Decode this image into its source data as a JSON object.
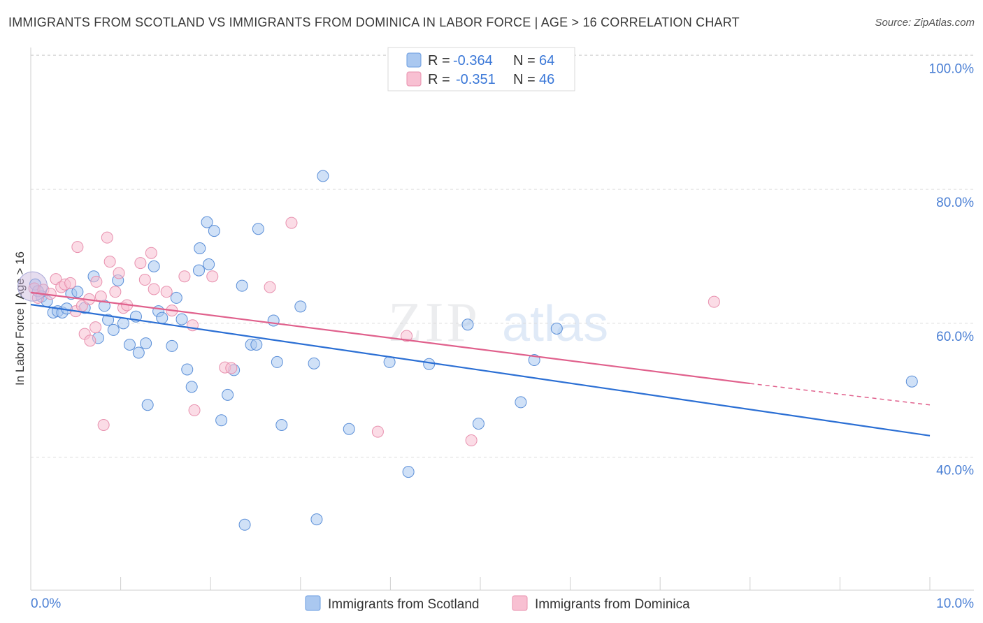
{
  "title": "IMMIGRANTS FROM SCOTLAND VS IMMIGRANTS FROM DOMINICA IN LABOR FORCE | AGE > 16 CORRELATION CHART",
  "source": "Source: ZipAtlas.com",
  "watermark": {
    "zip": "ZIP",
    "atlas": "atlas"
  },
  "chart_data": {
    "type": "scatter",
    "ylabel": "In Labor Force | Age > 16",
    "xlim": [
      0,
      10
    ],
    "ylim": [
      22,
      102
    ],
    "x_tick_labels": [
      "0.0%",
      "10.0%"
    ],
    "y_ticks": [
      40,
      60,
      80,
      100
    ],
    "y_tick_labels": [
      "40.0%",
      "60.0%",
      "80.0%",
      "100.0%"
    ],
    "legend": [
      {
        "r_label": "R =",
        "r": "-0.364",
        "n_label": "N =",
        "n": "64",
        "color": "#aac8f0",
        "stroke": "#6a9ce0"
      },
      {
        "r_label": "R =",
        "r": "-0.351",
        "n_label": "N =",
        "n": "46",
        "color": "#f8c0d2",
        "stroke": "#e890ae"
      }
    ],
    "series": [
      {
        "name": "Immigrants from Scotland",
        "color": "#aac8f0",
        "stroke": "#5b8fd8",
        "line_color": "#2b6fd4",
        "trend": {
          "x0": 0,
          "y0": 62.8,
          "x1": 10,
          "y1": 43.2
        },
        "points": [
          [
            0.05,
            65.8
          ],
          [
            0.08,
            64.8
          ],
          [
            0.12,
            64.0
          ],
          [
            0.18,
            63.3
          ],
          [
            0.25,
            61.6
          ],
          [
            0.3,
            61.8
          ],
          [
            0.35,
            61.6
          ],
          [
            0.4,
            62.2
          ],
          [
            0.45,
            64.4
          ],
          [
            0.52,
            64.7
          ],
          [
            0.6,
            62.3
          ],
          [
            0.7,
            67.0
          ],
          [
            0.75,
            57.8
          ],
          [
            0.82,
            62.6
          ],
          [
            0.86,
            60.5
          ],
          [
            0.92,
            59.0
          ],
          [
            0.97,
            66.4
          ],
          [
            1.03,
            60.0
          ],
          [
            1.1,
            56.8
          ],
          [
            1.17,
            61.0
          ],
          [
            1.2,
            55.6
          ],
          [
            1.28,
            57.0
          ],
          [
            1.3,
            47.8
          ],
          [
            1.37,
            68.5
          ],
          [
            1.42,
            61.8
          ],
          [
            1.46,
            60.8
          ],
          [
            1.57,
            56.6
          ],
          [
            1.62,
            63.8
          ],
          [
            1.68,
            60.6
          ],
          [
            1.74,
            53.1
          ],
          [
            1.79,
            50.5
          ],
          [
            1.87,
            67.9
          ],
          [
            1.88,
            71.2
          ],
          [
            1.96,
            75.1
          ],
          [
            1.98,
            68.8
          ],
          [
            2.04,
            73.8
          ],
          [
            2.12,
            45.5
          ],
          [
            2.19,
            49.3
          ],
          [
            2.26,
            53.0
          ],
          [
            2.35,
            65.6
          ],
          [
            2.38,
            29.9
          ],
          [
            2.45,
            56.8
          ],
          [
            2.51,
            56.8
          ],
          [
            2.53,
            74.1
          ],
          [
            2.7,
            60.4
          ],
          [
            2.74,
            54.2
          ],
          [
            2.79,
            44.8
          ],
          [
            3.0,
            62.5
          ],
          [
            3.15,
            54.0
          ],
          [
            3.18,
            30.7
          ],
          [
            3.25,
            82.0
          ],
          [
            3.54,
            44.2
          ],
          [
            3.99,
            54.2
          ],
          [
            4.2,
            37.8
          ],
          [
            4.43,
            53.9
          ],
          [
            4.86,
            59.8
          ],
          [
            4.98,
            45.0
          ],
          [
            5.45,
            48.2
          ],
          [
            5.6,
            54.5
          ],
          [
            5.85,
            59.2
          ],
          [
            9.8,
            51.3
          ]
        ]
      },
      {
        "name": "Immigrants from Dominica",
        "color": "#f8c0d2",
        "stroke": "#e890ae",
        "line_color": "#e0608c",
        "trend": {
          "x0": 0,
          "y0": 64.6,
          "x1": 8.0,
          "y1": 51.0
        },
        "trend_dash": {
          "x0": 8.0,
          "y0": 51.0,
          "x1": 10,
          "y1": 47.8
        },
        "points": [
          [
            0.04,
            65.2
          ],
          [
            0.08,
            63.8
          ],
          [
            0.14,
            65.0
          ],
          [
            0.22,
            64.4
          ],
          [
            0.28,
            66.6
          ],
          [
            0.34,
            65.4
          ],
          [
            0.38,
            65.8
          ],
          [
            0.44,
            66.0
          ],
          [
            0.5,
            61.8
          ],
          [
            0.52,
            71.4
          ],
          [
            0.57,
            62.6
          ],
          [
            0.6,
            58.4
          ],
          [
            0.65,
            63.6
          ],
          [
            0.66,
            57.4
          ],
          [
            0.72,
            59.4
          ],
          [
            0.73,
            66.2
          ],
          [
            0.78,
            64.0
          ],
          [
            0.81,
            44.8
          ],
          [
            0.85,
            72.8
          ],
          [
            0.88,
            69.2
          ],
          [
            0.94,
            64.7
          ],
          [
            0.98,
            67.5
          ],
          [
            1.03,
            62.3
          ],
          [
            1.07,
            62.7
          ],
          [
            1.22,
            69.0
          ],
          [
            1.27,
            66.5
          ],
          [
            1.34,
            70.5
          ],
          [
            1.37,
            65.1
          ],
          [
            1.51,
            64.7
          ],
          [
            1.57,
            61.9
          ],
          [
            1.71,
            67.0
          ],
          [
            1.8,
            59.7
          ],
          [
            1.82,
            47.0
          ],
          [
            2.02,
            67.0
          ],
          [
            2.16,
            53.4
          ],
          [
            2.23,
            53.3
          ],
          [
            2.66,
            65.4
          ],
          [
            2.9,
            75.0
          ],
          [
            3.86,
            43.8
          ],
          [
            4.18,
            58.1
          ],
          [
            4.9,
            42.5
          ],
          [
            7.6,
            63.2
          ]
        ]
      }
    ]
  }
}
